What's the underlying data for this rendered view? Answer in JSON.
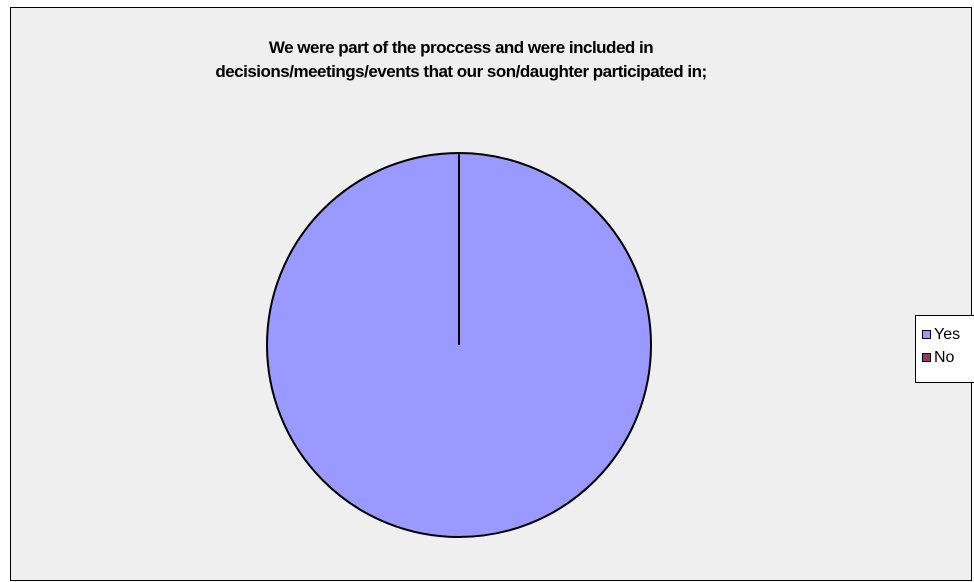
{
  "chart_data": {
    "type": "pie",
    "title_lines": [
      "We were part of the proccess and were included in",
      "decisions/meetings/events that our son/daughter participated in;"
    ],
    "categories": [
      "Yes",
      "No"
    ],
    "values": [
      100,
      0
    ],
    "colors": [
      "#9999ff",
      "#993366"
    ],
    "legend_position": "right"
  }
}
